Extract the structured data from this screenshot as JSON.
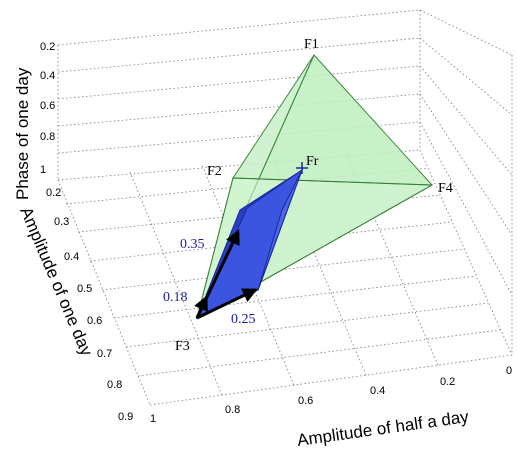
{
  "chart_data": {
    "type": "3d-polyhedron",
    "xlabel": "Amplitude of half a day",
    "ylabel": "Amplitude of one day",
    "zlabel": "Phase of one day",
    "x_ticks": [
      "1",
      "0.8",
      "0.6",
      "0.4",
      "0.2",
      "0"
    ],
    "y_ticks": [
      "0.2",
      "0.3",
      "0.4",
      "0.5",
      "0.6",
      "0.7",
      "0.8",
      "0.9"
    ],
    "z_ticks": [
      "0.2",
      "0.4",
      "0.6",
      "0.8",
      "1"
    ],
    "points": [
      {
        "label": "F1"
      },
      {
        "label": "F2"
      },
      {
        "label": "F3"
      },
      {
        "label": "F4"
      },
      {
        "label": "Fr"
      }
    ],
    "annotations": [
      {
        "label": "0.35",
        "color": "#1a1aaa"
      },
      {
        "label": "0.18",
        "color": "#1a1aaa"
      },
      {
        "label": "0.25",
        "color": "#1a1aaa"
      }
    ],
    "colors": {
      "outer_fill": "#c8f0c8",
      "outer_stroke": "#2e7d2e",
      "inner_fill": "#3b55e0",
      "inner_dark": "#2a3fc0",
      "inner_stroke": "#1a2a9a",
      "arrow": "#000000",
      "annotation": "#1a1aaa"
    },
    "grid": true
  }
}
